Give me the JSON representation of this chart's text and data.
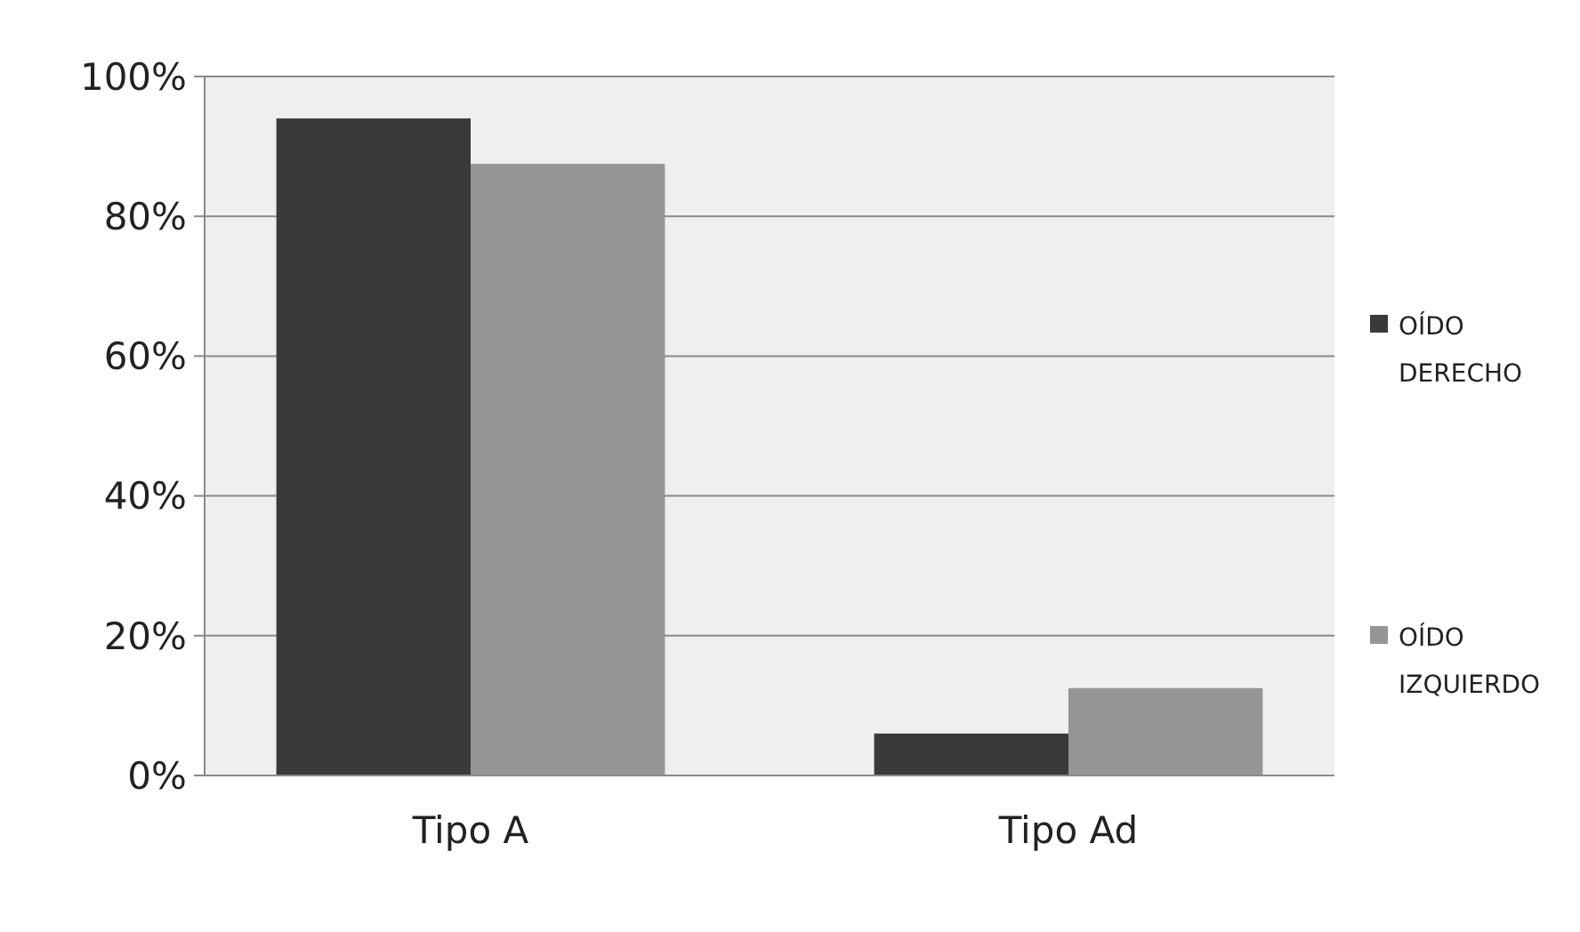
{
  "chart_data": {
    "type": "bar",
    "categories": [
      "Tipo A",
      "Tipo Ad"
    ],
    "series": [
      {
        "name": "OÍDO DERECHO",
        "color": "#3a3a3a",
        "values": [
          94,
          6
        ]
      },
      {
        "name": "OÍDO IZQUIERDO",
        "color": "#959595",
        "values": [
          87.5,
          12.5
        ]
      }
    ],
    "ylim": [
      0,
      100
    ],
    "yticks": [
      {
        "value": 0,
        "label": "0%"
      },
      {
        "value": 20,
        "label": "20%"
      },
      {
        "value": 40,
        "label": "40%"
      },
      {
        "value": 60,
        "label": "60%"
      },
      {
        "value": 80,
        "label": "80%"
      },
      {
        "value": 100,
        "label": "100%"
      }
    ],
    "grid": "y",
    "legend": "right"
  }
}
